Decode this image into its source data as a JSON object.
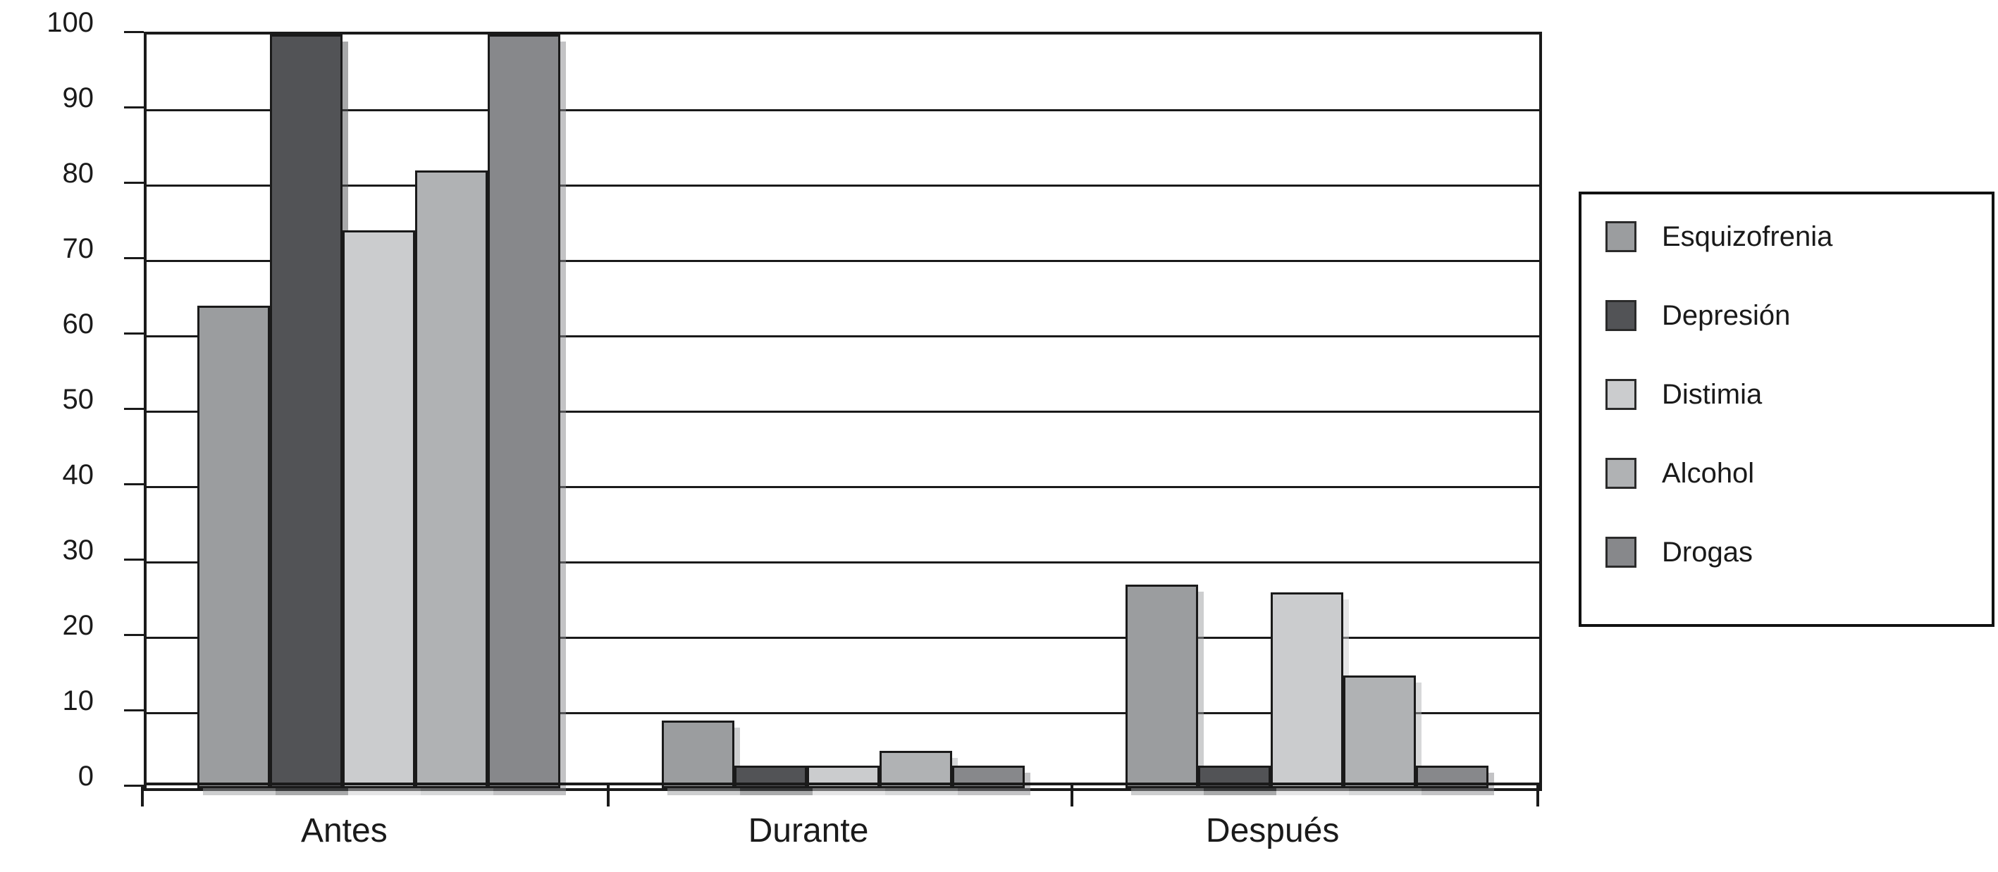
{
  "figure": {
    "background_color": "#ffffff",
    "axis_color": "#1a1a1a",
    "gridline_color": "#1a1a1a",
    "bar_border_color": "#1a1a1a",
    "legend_border_color": "#111111"
  },
  "chart_data": {
    "type": "bar",
    "title": "",
    "xlabel": "",
    "ylabel": "",
    "categories": [
      "Antes",
      "Durante",
      "Después"
    ],
    "series": [
      {
        "name": "Esquizofrenia",
        "color": "#9b9d9f",
        "values": [
          64,
          9,
          27
        ]
      },
      {
        "name": "Depresión",
        "color": "#525356",
        "values": [
          100,
          3,
          3
        ]
      },
      {
        "name": "Distimia",
        "color": "#cbccce",
        "values": [
          74,
          3,
          26
        ]
      },
      {
        "name": "Alcohol",
        "color": "#b0b2b4",
        "values": [
          82,
          5,
          15
        ]
      },
      {
        "name": "Drogas",
        "color": "#87888b",
        "values": [
          100,
          3,
          3
        ]
      }
    ],
    "ylim": [
      0,
      100
    ],
    "yticks": [
      0,
      10,
      20,
      30,
      40,
      50,
      60,
      70,
      80,
      90,
      100
    ],
    "grid": true,
    "legend_position": "right"
  }
}
